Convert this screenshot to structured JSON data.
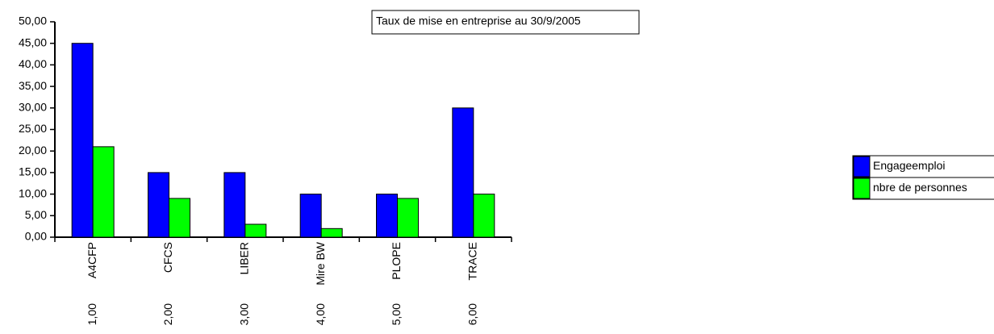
{
  "chart_data": {
    "type": "bar",
    "title": "Taux de mise en entreprise au 30/9/2005",
    "categories": [
      "A4CFP",
      "CFCS",
      "LIBER",
      "Mire BW",
      "PLOPE",
      "TRACE"
    ],
    "category_codes": [
      "1,00",
      "2,00",
      "3,00",
      "4,00",
      "5,00",
      "6,00"
    ],
    "series": [
      {
        "name": "Engageemploi",
        "color": "#0000ff",
        "values": [
          45,
          15,
          15,
          10,
          10,
          30
        ]
      },
      {
        "name": "nbre de personnes",
        "color": "#00ff00",
        "values": [
          21,
          9,
          3,
          2,
          9,
          10
        ]
      }
    ],
    "ylim": [
      0,
      50
    ],
    "yticks": [
      {
        "value": 0,
        "label": "0,00"
      },
      {
        "value": 5,
        "label": "5,00"
      },
      {
        "value": 10,
        "label": "10,00"
      },
      {
        "value": 15,
        "label": "15,00"
      },
      {
        "value": 20,
        "label": "20,00"
      },
      {
        "value": 25,
        "label": "25,00"
      },
      {
        "value": 30,
        "label": "30,00"
      },
      {
        "value": 35,
        "label": "35,00"
      },
      {
        "value": 40,
        "label": "40,00"
      },
      {
        "value": 45,
        "label": "45,00"
      },
      {
        "value": 50,
        "label": "50,00"
      }
    ],
    "grid": false,
    "legend": "right"
  }
}
